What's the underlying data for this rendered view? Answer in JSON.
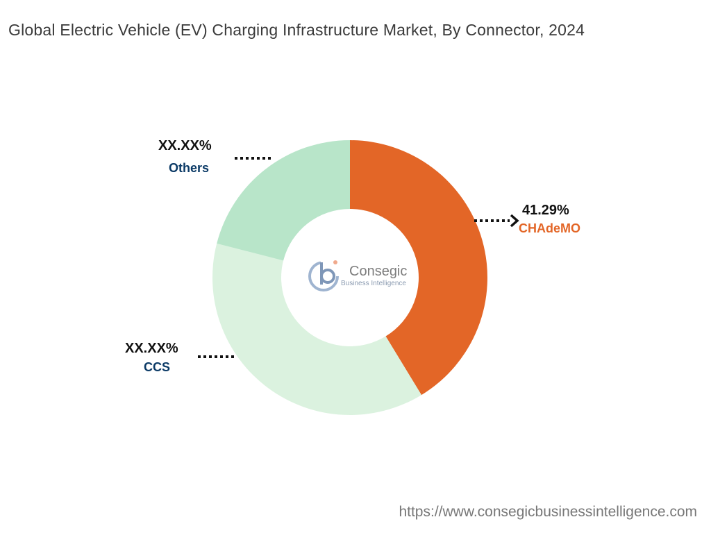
{
  "title": "Global Electric Vehicle (EV) Charging Infrastructure Market, By Connector, 2024",
  "footer_url": "https://www.consegicbusinessintelligence.com",
  "logo": {
    "name": "Consegic",
    "tagline": "Business Intelligence"
  },
  "chart_data": {
    "type": "pie",
    "style": "donut",
    "segments": [
      {
        "name": "CHAdeMO",
        "label": "41.29%",
        "value": 41.29,
        "color": "#e36627",
        "label_color": "#e36627"
      },
      {
        "name": "CCS",
        "label": "XX.XX%",
        "value": 37.7,
        "color": "#dbf2df",
        "label_color": "#0b3a66"
      },
      {
        "name": "Others",
        "label": "XX.XX%",
        "value": 21.01,
        "color": "#b8e5c9",
        "label_color": "#0b3a66"
      }
    ],
    "legend": "none"
  }
}
